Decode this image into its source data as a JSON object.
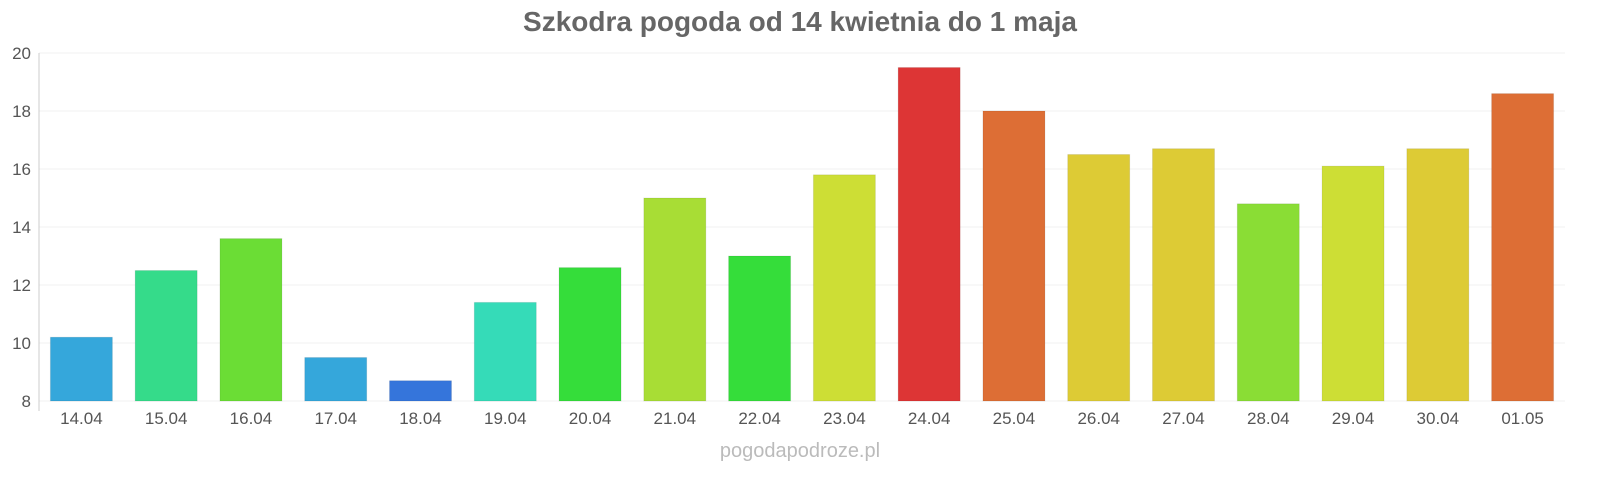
{
  "chart_data": {
    "type": "bar",
    "title": "Szkodra pogoda od 14 kwietnia do 1 maja",
    "xlabel": "",
    "ylabel": "",
    "ylim": [
      8,
      20
    ],
    "yticks": [
      8,
      10,
      12,
      14,
      16,
      18,
      20
    ],
    "grid": true,
    "categories": [
      "14.04",
      "15.04",
      "16.04",
      "17.04",
      "18.04",
      "19.04",
      "20.04",
      "21.04",
      "22.04",
      "23.04",
      "24.04",
      "25.04",
      "26.04",
      "27.04",
      "28.04",
      "29.04",
      "30.04",
      "01.05"
    ],
    "values": [
      10.2,
      12.5,
      13.6,
      9.5,
      8.7,
      11.4,
      12.6,
      15.0,
      13.0,
      15.8,
      19.5,
      18.0,
      16.5,
      16.7,
      14.8,
      16.1,
      16.7,
      18.6
    ],
    "colors": [
      "#35a7db",
      "#35db8a",
      "#6bdd35",
      "#35a7db",
      "#3575db",
      "#35dbb8",
      "#35dd3a",
      "#a8dd35",
      "#35dd3a",
      "#cdde35",
      "#dd3535",
      "#dd6e35",
      "#ddcb35",
      "#ddcb35",
      "#8add35",
      "#cdde35",
      "#ddcb35",
      "#dd6e35"
    ]
  },
  "footer": "pogodapodroze.pl"
}
